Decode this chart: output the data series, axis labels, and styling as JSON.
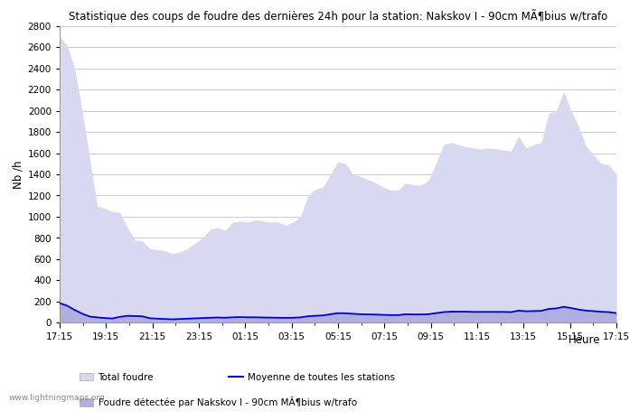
{
  "title": "Statistique des coups de foudre des dernières 24h pour la station: Nakskov I - 90cm MÃ¶bius w/trafo",
  "ylabel": "Nb /h",
  "xlabel": "Heure",
  "watermark": "www.lightningmaps.org",
  "x_ticks": [
    "17:15",
    "19:15",
    "21:15",
    "23:15",
    "01:15",
    "03:15",
    "05:15",
    "07:15",
    "09:15",
    "11:15",
    "13:15",
    "15:15",
    "17:15"
  ],
  "ylim": [
    0,
    2800
  ],
  "yticks": [
    0,
    200,
    400,
    600,
    800,
    1000,
    1200,
    1400,
    1600,
    1800,
    2000,
    2200,
    2400,
    2600,
    2800
  ],
  "bg_color": "#ffffff",
  "grid_color": "#cccccc",
  "fill_total_color": "#d8d8f0",
  "fill_station_color": "#b0b0e0",
  "line_mean_color": "#0000cc",
  "legend_total": "Total foudre",
  "legend_mean": "Moyenne de toutes les stations",
  "legend_station": "Foudre détectée par Nakskov I - 90cm MÃ¶bius w/trafo",
  "total_foudre": [
    2700,
    2620,
    2400,
    2000,
    1550,
    1100,
    1080,
    1050,
    1040,
    900,
    780,
    770,
    700,
    690,
    680,
    650,
    670,
    700,
    750,
    800,
    880,
    900,
    870,
    950,
    960,
    950,
    970,
    960,
    950,
    950,
    920,
    950,
    1000,
    1200,
    1260,
    1280,
    1400,
    1520,
    1500,
    1400,
    1380,
    1350,
    1320,
    1280,
    1250,
    1250,
    1320,
    1300,
    1300,
    1340,
    1500,
    1680,
    1700,
    1680,
    1660,
    1650,
    1640,
    1650,
    1640,
    1630,
    1620,
    1760,
    1650,
    1680,
    1700,
    1980,
    2000,
    2180,
    2000,
    1850,
    1660,
    1580,
    1500,
    1490,
    1400
  ],
  "station_foudre": [
    190,
    170,
    130,
    90,
    65,
    58,
    52,
    48,
    60,
    70,
    70,
    68,
    46,
    42,
    40,
    38,
    40,
    42,
    45,
    48,
    52,
    54,
    52,
    56,
    58,
    56,
    56,
    54,
    53,
    52,
    50,
    52,
    54,
    65,
    70,
    74,
    85,
    96,
    95,
    90,
    86,
    84,
    83,
    80,
    78,
    78,
    86,
    84,
    84,
    86,
    96,
    106,
    110,
    110,
    110,
    108,
    108,
    108,
    108,
    108,
    106,
    120,
    114,
    116,
    118,
    134,
    140,
    155,
    143,
    128,
    118,
    114,
    108,
    106,
    95
  ],
  "mean_line": [
    185,
    160,
    120,
    85,
    58,
    50,
    44,
    40,
    55,
    65,
    63,
    60,
    42,
    38,
    35,
    32,
    35,
    38,
    41,
    44,
    47,
    49,
    47,
    51,
    53,
    51,
    51,
    49,
    48,
    47,
    46,
    47,
    50,
    61,
    65,
    69,
    80,
    90,
    89,
    84,
    80,
    78,
    77,
    74,
    72,
    72,
    80,
    78,
    78,
    80,
    90,
    100,
    104,
    104,
    104,
    102,
    102,
    102,
    102,
    102,
    100,
    114,
    108,
    110,
    112,
    130,
    135,
    150,
    138,
    124,
    114,
    109,
    103,
    100,
    90
  ]
}
